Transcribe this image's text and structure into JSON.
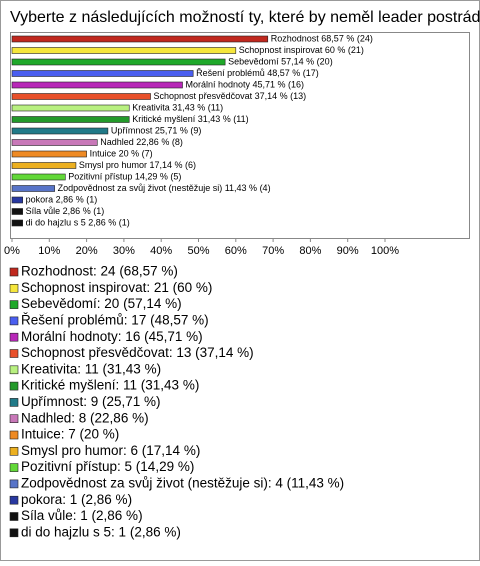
{
  "chart_data": {
    "type": "bar",
    "orientation": "horizontal",
    "title": "Vyberte z následujících možností ty, které by neměl leader postrádat.",
    "categories": [
      "Rozhodnost",
      "Schopnost inspirovat",
      "Sebevědomí",
      "Řešení problémů",
      "Morální hodnoty",
      "Schopnost přesvědčovat",
      "Kreativita",
      "Kritické myšlení",
      "Upřímnost",
      "Nadhled",
      "Intuice",
      "Smysl pro humor",
      "Pozitivní přístup",
      "Zodpovědnost za svůj život (nestěžuje si)",
      "pokora",
      "Síla vůle",
      "di do hajzlu s 5"
    ],
    "values": [
      68.57,
      60,
      57.14,
      48.57,
      45.71,
      37.14,
      31.43,
      31.43,
      25.71,
      22.86,
      20,
      17.14,
      14.29,
      11.43,
      2.86,
      2.86,
      2.86
    ],
    "value_labels": [
      "Rozhodnost 68,57 % (24)",
      "Schopnost inspirovat 60 % (21)",
      "Sebevědomí 57,14 % (20)",
      "Řešení problémů 48,57 % (17)",
      "Morální hodnoty 45,71 % (16)",
      "Schopnost přesvědčovat 37,14 % (13)",
      "Kreativita 31,43 % (11)",
      "Kritické myšlení 31,43 % (11)",
      "Upřímnost 25,71 % (9)",
      "Nadhled 22,86 % (8)",
      "Intuice 20 % (7)",
      "Smysl pro humor 17,14 % (6)",
      "Pozitivní přístup 14,29 % (5)",
      "Zodpovědnost za svůj život (nestěžuje si) 11,43 % (4)",
      "pokora 2,86 % (1)",
      "Síla vůle 2,86 % (1)",
      "di do hajzlu s 5 2,86 % (1)"
    ],
    "legend_labels": [
      "Rozhodnost: 24 (68,57 %)",
      "Schopnost inspirovat: 21 (60 %)",
      "Sebevědomí: 20 (57,14 %)",
      "Řešení problémů: 17 (48,57 %)",
      "Morální hodnoty: 16 (45,71 %)",
      "Schopnost přesvědčovat: 13 (37,14 %)",
      "Kreativita: 11 (31,43 %)",
      "Kritické myšlení: 11 (31,43 %)",
      "Upřímnost: 9 (25,71 %)",
      "Nadhled: 8 (22,86 %)",
      "Intuice: 7 (20 %)",
      "Smysl pro humor: 6 (17,14 %)",
      "Pozitivní přístup: 5 (14,29 %)",
      "Zodpovědnost za svůj život (nestěžuje si): 4 (11,43 %)",
      "pokora: 1 (2,86 %)",
      "Síla vůle: 1 (2,86 %)",
      "di do hajzlu s 5: 1 (2,86 %)"
    ],
    "colors": [
      "#c0281e",
      "#f5e63c",
      "#1fa82a",
      "#4a5ef0",
      "#b828b8",
      "#e8502a",
      "#b8f080",
      "#239a2a",
      "#217a88",
      "#c878b8",
      "#ee8a24",
      "#ecb020",
      "#62d838",
      "#5874c8",
      "#2838a0",
      "#111111",
      "#111111"
    ],
    "xlim": [
      0,
      100
    ],
    "xticks": [
      {
        "value": 0,
        "label": "0%"
      },
      {
        "value": 10,
        "label": "10%"
      },
      {
        "value": 20,
        "label": "20%"
      },
      {
        "value": 30,
        "label": "30%"
      },
      {
        "value": 40,
        "label": "40%"
      },
      {
        "value": 50,
        "label": "50%"
      },
      {
        "value": 60,
        "label": "60%"
      },
      {
        "value": 70,
        "label": "70%"
      },
      {
        "value": 80,
        "label": "80%"
      },
      {
        "value": 90,
        "label": "90%"
      },
      {
        "value": 100,
        "label": "100%"
      }
    ]
  }
}
